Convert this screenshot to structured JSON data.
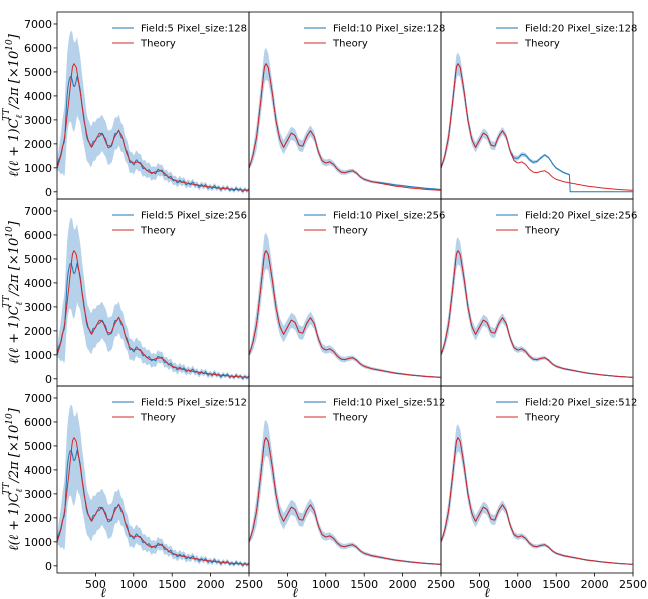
{
  "figure": {
    "ylabel": "ℓ(ℓ + 1)C",
    "ylabel_sub": "ℓ",
    "ylabel_sup": "TT",
    "ylabel_tail": "/2π [×10",
    "ylabel_exp": "10",
    "ylabel_end": "]",
    "xlabel": "ℓ",
    "colors": {
      "measured": "#1f77b4",
      "band": "#9ec3e3",
      "theory": "#d62728"
    }
  },
  "chart_data": [
    {
      "type": "line",
      "row": 0,
      "col": 0,
      "field": 5,
      "pixel_size": 128,
      "legend": [
        "Field:5 Pixel_size:128",
        "Theory"
      ],
      "xlim": [
        0,
        2500
      ],
      "ylim": [
        -300,
        7500
      ],
      "xticks": [],
      "yticks": [
        "0",
        "1000",
        "2000",
        "3000",
        "4000",
        "5000",
        "6000",
        "7000"
      ],
      "ytick_values": [
        0,
        1000,
        2000,
        3000,
        4000,
        5000,
        6000,
        7000
      ],
      "band_scale": 1.0,
      "wiggle": true,
      "dev_after": null
    },
    {
      "type": "line",
      "row": 0,
      "col": 1,
      "field": 10,
      "pixel_size": 128,
      "legend": [
        "Field:10 Pixel_size:128",
        "Theory"
      ],
      "xlim": [
        0,
        2500
      ],
      "ylim": [
        -300,
        7500
      ],
      "xticks": [],
      "yticks": [],
      "band_scale": 0.35,
      "wiggle": false,
      "dev_after": 1600
    },
    {
      "type": "line",
      "row": 0,
      "col": 2,
      "field": 20,
      "pixel_size": 128,
      "legend": [
        "Field:20 Pixel_size:128",
        "Theory"
      ],
      "xlim": [
        0,
        2500
      ],
      "ylim": [
        -300,
        7500
      ],
      "xticks": [],
      "yticks": [],
      "band_scale": 0.25,
      "wiggle": false,
      "dev_after": 900
    },
    {
      "type": "line",
      "row": 1,
      "col": 0,
      "field": 5,
      "pixel_size": 256,
      "legend": [
        "Field:5 Pixel_size:256",
        "Theory"
      ],
      "xlim": [
        0,
        2500
      ],
      "ylim": [
        -300,
        7500
      ],
      "xticks": [],
      "yticks": [
        "0",
        "1000",
        "2000",
        "3000",
        "4000",
        "5000",
        "6000",
        "7000"
      ],
      "ytick_values": [
        0,
        1000,
        2000,
        3000,
        4000,
        5000,
        6000,
        7000
      ],
      "band_scale": 1.0,
      "wiggle": true,
      "dev_after": null
    },
    {
      "type": "line",
      "row": 1,
      "col": 1,
      "field": 10,
      "pixel_size": 256,
      "legend": [
        "Field:10 Pixel_size:256",
        "Theory"
      ],
      "xlim": [
        0,
        2500
      ],
      "ylim": [
        -300,
        7500
      ],
      "xticks": [],
      "yticks": [],
      "band_scale": 0.4,
      "wiggle": false,
      "dev_after": null
    },
    {
      "type": "line",
      "row": 1,
      "col": 2,
      "field": 20,
      "pixel_size": 256,
      "legend": [
        "Field:20 Pixel_size:256",
        "Theory"
      ],
      "xlim": [
        0,
        2500
      ],
      "ylim": [
        -300,
        7500
      ],
      "xticks": [],
      "yticks": [],
      "band_scale": 0.3,
      "wiggle": false,
      "dev_after": null
    },
    {
      "type": "line",
      "row": 2,
      "col": 0,
      "field": 5,
      "pixel_size": 512,
      "legend": [
        "Field:5 Pixel_size:512",
        "Theory"
      ],
      "xlim": [
        0,
        2500
      ],
      "ylim": [
        -300,
        7500
      ],
      "xticks": [
        "500",
        "1000",
        "1500",
        "2000",
        "2500"
      ],
      "xtick_values": [
        500,
        1000,
        1500,
        2000,
        2500
      ],
      "yticks": [
        "0",
        "1000",
        "2000",
        "3000",
        "4000",
        "5000",
        "6000",
        "7000"
      ],
      "ytick_values": [
        0,
        1000,
        2000,
        3000,
        4000,
        5000,
        6000,
        7000
      ],
      "band_scale": 1.0,
      "wiggle": true,
      "dev_after": null
    },
    {
      "type": "line",
      "row": 2,
      "col": 1,
      "field": 10,
      "pixel_size": 512,
      "legend": [
        "Field:10 Pixel_size:512",
        "Theory"
      ],
      "xlim": [
        0,
        2500
      ],
      "ylim": [
        -300,
        7500
      ],
      "xticks": [
        "500",
        "1000",
        "1500",
        "2000",
        "2500"
      ],
      "xtick_values": [
        500,
        1000,
        1500,
        2000,
        2500
      ],
      "yticks": [],
      "band_scale": 0.4,
      "wiggle": false,
      "dev_after": null
    },
    {
      "type": "line",
      "row": 2,
      "col": 2,
      "field": 20,
      "pixel_size": 512,
      "legend": [
        "Field:20 Pixel_size:512",
        "Theory"
      ],
      "xlim": [
        0,
        2500
      ],
      "ylim": [
        -300,
        7500
      ],
      "xticks": [
        "500",
        "1000",
        "1500",
        "2000",
        "2500"
      ],
      "xtick_values": [
        500,
        1000,
        1500,
        2000,
        2500
      ],
      "yticks": [],
      "band_scale": 0.3,
      "wiggle": false,
      "dev_after": null
    }
  ],
  "theory_curve": {
    "x": [
      2,
      50,
      100,
      150,
      200,
      220,
      250,
      300,
      350,
      400,
      450,
      500,
      550,
      600,
      650,
      700,
      750,
      800,
      850,
      900,
      950,
      1000,
      1050,
      1100,
      1150,
      1200,
      1250,
      1300,
      1350,
      1400,
      1450,
      1500,
      1600,
      1700,
      1800,
      1900,
      2000,
      2100,
      2200,
      2300,
      2400,
      2500
    ],
    "y": [
      1000,
      1500,
      2300,
      3700,
      5200,
      5350,
      5200,
      4200,
      3000,
      2200,
      1850,
      2150,
      2450,
      2350,
      1950,
      1900,
      2300,
      2550,
      2300,
      1700,
      1300,
      1200,
      1250,
      1150,
      950,
      820,
      800,
      850,
      880,
      780,
      620,
      520,
      420,
      360,
      300,
      240,
      200,
      160,
      130,
      100,
      80,
      60
    ]
  },
  "measured_band_halfwidth": {
    "x": [
      2,
      100,
      200,
      300,
      400,
      500,
      600,
      700,
      800,
      900,
      1000,
      1200,
      1400,
      1600,
      1800,
      2000,
      2200,
      2500
    ],
    "y": [
      200,
      1500,
      2000,
      1400,
      900,
      800,
      750,
      700,
      650,
      500,
      400,
      300,
      220,
      170,
      130,
      110,
      90,
      80
    ]
  }
}
